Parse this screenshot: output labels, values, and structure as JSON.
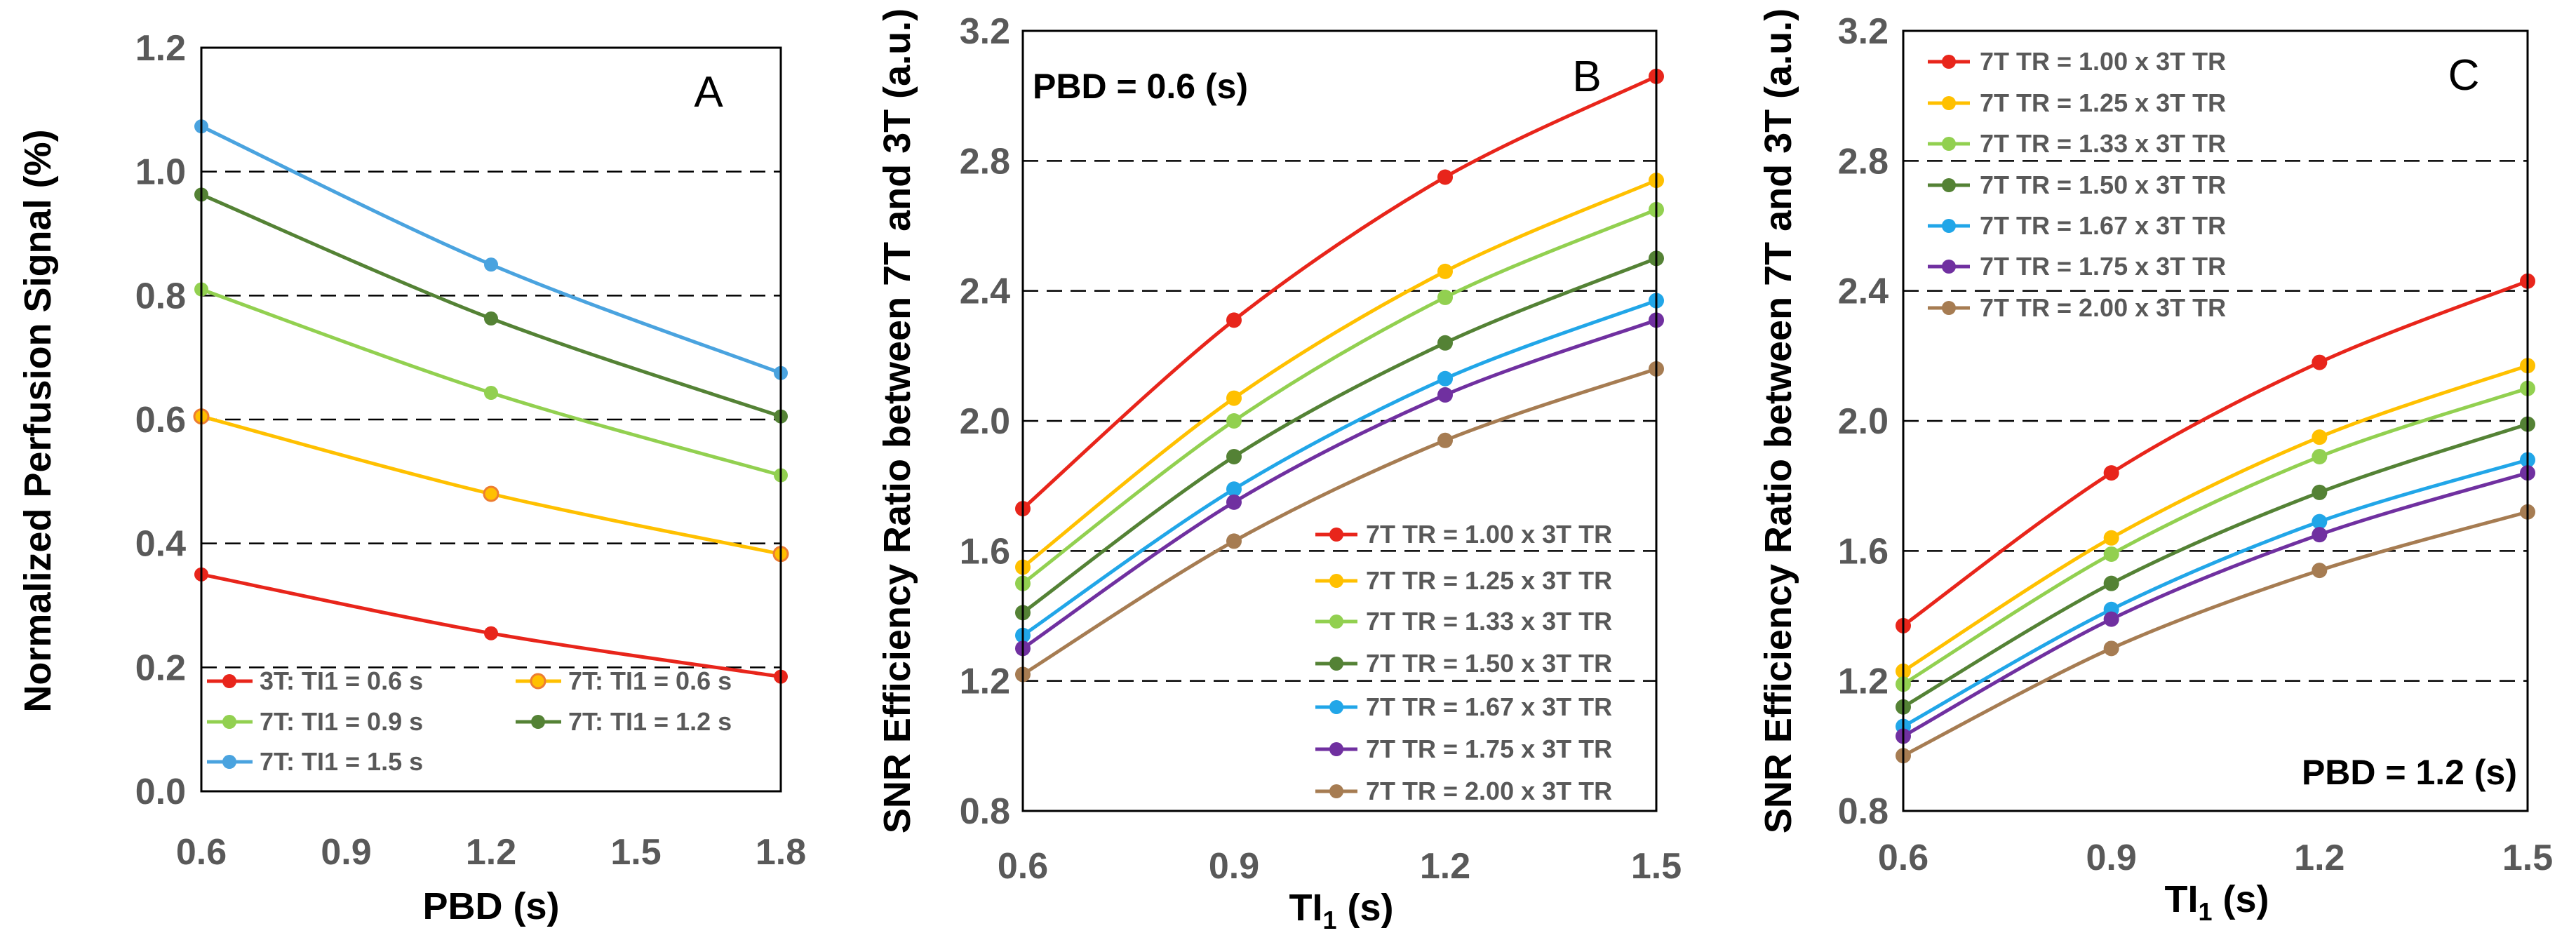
{
  "chart_data": [
    {
      "id": "A",
      "type": "line",
      "panel_label": "A",
      "title": "",
      "xlabel": "PBD (s)",
      "ylabel": "Normalized Perfusion Signal (%)",
      "x": [
        0.6,
        1.2,
        1.8
      ],
      "x_ticks": [
        "0.6",
        "0.9",
        "1.2",
        "1.5",
        "1.8"
      ],
      "xlim": [
        0.6,
        1.8
      ],
      "y_ticks": [
        "0.0",
        "0.2",
        "0.4",
        "0.6",
        "0.8",
        "1.0",
        "1.2"
      ],
      "ylim": [
        0.0,
        1.2
      ],
      "gridlines_y": [
        0.2,
        0.4,
        0.6,
        0.8,
        1.0
      ],
      "legend_position": "bottom-left",
      "legend_columns": 2,
      "series": [
        {
          "name": "3T: TI1 = 0.6 s",
          "color": "#E8251B",
          "values": [
            0.35,
            0.255,
            0.185
          ]
        },
        {
          "name": "7T: TI1 = 0.6 s",
          "color": "#FFC000",
          "marker_edge": "#ED7D31",
          "values": [
            0.605,
            0.48,
            0.383
          ]
        },
        {
          "name": "7T: TI1 = 0.9 s",
          "color": "#92D050",
          "values": [
            0.81,
            0.643,
            0.51
          ]
        },
        {
          "name": "7T: TI1 = 1.2 s",
          "color": "#548235",
          "values": [
            0.963,
            0.763,
            0.605
          ]
        },
        {
          "name": "7T: TI1 = 1.5 s",
          "color": "#4AA3DF",
          "values": [
            1.073,
            0.85,
            0.675
          ]
        }
      ]
    },
    {
      "id": "B",
      "type": "line",
      "panel_label": "B",
      "annotation": "PBD  = 0.6 (s)",
      "title": "",
      "xlabel": "TI",
      "xlabel_sub": "1",
      "xlabel_suffix": " (s)",
      "ylabel": "SNR Efficiency Ratio between 7T and 3T (a.u.)",
      "x": [
        0.6,
        0.9,
        1.2,
        1.5
      ],
      "x_ticks": [
        "0.6",
        "0.9",
        "1.2",
        "1.5"
      ],
      "xlim": [
        0.6,
        1.5
      ],
      "y_ticks": [
        "0.8",
        "1.2",
        "1.6",
        "2.0",
        "2.4",
        "2.8",
        "3.2"
      ],
      "ylim": [
        0.8,
        3.2
      ],
      "gridlines_y": [
        1.2,
        1.6,
        2.0,
        2.4,
        2.8
      ],
      "legend_position": "bottom-right",
      "series": [
        {
          "name": "7T TR = 1.00 x 3T TR",
          "color": "#E8251B",
          "values": [
            1.73,
            2.31,
            2.75,
            3.06
          ]
        },
        {
          "name": "7T TR = 1.25 x 3T TR",
          "color": "#FFC000",
          "values": [
            1.55,
            2.07,
            2.46,
            2.74
          ]
        },
        {
          "name": "7T TR = 1.33 x 3T TR",
          "color": "#92D050",
          "values": [
            1.5,
            2.0,
            2.38,
            2.65
          ]
        },
        {
          "name": "7T TR = 1.50 x 3T TR",
          "color": "#548235",
          "values": [
            1.41,
            1.89,
            2.24,
            2.5
          ]
        },
        {
          "name": "7T TR = 1.67 x 3T TR",
          "color": "#21A6E8",
          "values": [
            1.34,
            1.79,
            2.13,
            2.37
          ]
        },
        {
          "name": "7T TR = 1.75 x 3T TR",
          "color": "#7030A0",
          "values": [
            1.3,
            1.75,
            2.08,
            2.31
          ]
        },
        {
          "name": "7T TR = 2.00 x 3T TR",
          "color": "#A67C52",
          "values": [
            1.22,
            1.63,
            1.94,
            2.16
          ]
        }
      ]
    },
    {
      "id": "C",
      "type": "line",
      "panel_label": "C",
      "annotation": "PBD  = 1.2 (s)",
      "title": "",
      "xlabel": "TI",
      "xlabel_sub": "1",
      "xlabel_suffix": " (s)",
      "ylabel": "SNR Efficiency Ratio between 7T and 3T (a.u.)",
      "x": [
        0.6,
        0.9,
        1.2,
        1.5
      ],
      "x_ticks": [
        "0.6",
        "0.9",
        "1.2",
        "1.5"
      ],
      "xlim": [
        0.6,
        1.5
      ],
      "y_ticks": [
        "0.8",
        "1.2",
        "1.6",
        "2.0",
        "2.4",
        "2.8",
        "3.2"
      ],
      "ylim": [
        0.8,
        3.2
      ],
      "gridlines_y": [
        1.2,
        1.6,
        2.0,
        2.4,
        2.8
      ],
      "legend_position": "top-left",
      "series": [
        {
          "name": "7T TR = 1.00 x 3T TR",
          "color": "#E8251B",
          "values": [
            1.37,
            1.84,
            2.18,
            2.43
          ]
        },
        {
          "name": "7T TR = 1.25 x 3T TR",
          "color": "#FFC000",
          "values": [
            1.23,
            1.64,
            1.95,
            2.17
          ]
        },
        {
          "name": "7T TR = 1.33 x 3T TR",
          "color": "#92D050",
          "values": [
            1.19,
            1.59,
            1.89,
            2.1
          ]
        },
        {
          "name": "7T TR = 1.50 x 3T TR",
          "color": "#548235",
          "values": [
            1.12,
            1.5,
            1.78,
            1.99
          ]
        },
        {
          "name": "7T TR = 1.67 x 3T TR",
          "color": "#21A6E8",
          "values": [
            1.06,
            1.42,
            1.69,
            1.88
          ]
        },
        {
          "name": "7T TR = 1.75 x 3T TR",
          "color": "#7030A0",
          "values": [
            1.03,
            1.39,
            1.65,
            1.84
          ]
        },
        {
          "name": "7T TR = 2.00 x 3T TR",
          "color": "#A67C52",
          "values": [
            0.97,
            1.3,
            1.54,
            1.72
          ]
        }
      ]
    }
  ]
}
